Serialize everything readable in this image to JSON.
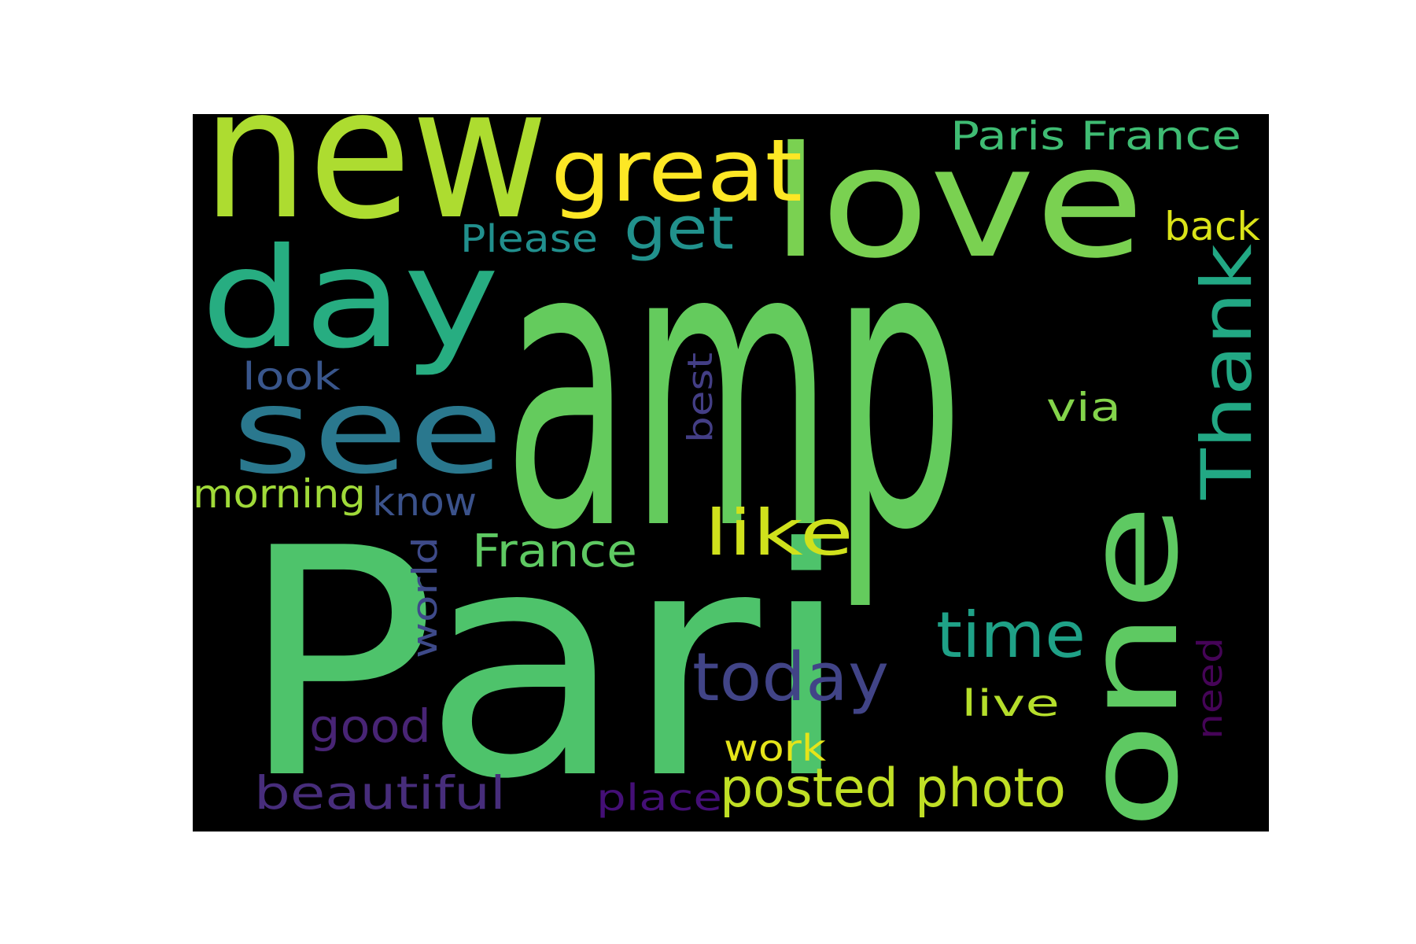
{
  "word_cloud": {
    "background_color": "#000000",
    "words": [
      {
        "text": "amp",
        "color": "#64cb5d"
      },
      {
        "text": "Pari",
        "color": "#4ec36b"
      },
      {
        "text": "new",
        "color": "#addc30"
      },
      {
        "text": "love",
        "color": "#7ad151"
      },
      {
        "text": "day",
        "color": "#27ad81"
      },
      {
        "text": "see",
        "color": "#2a788e"
      },
      {
        "text": "great",
        "color": "#fde725"
      },
      {
        "text": "one",
        "color": "#5ec962"
      },
      {
        "text": "Thank",
        "color": "#22a884"
      },
      {
        "text": "get",
        "color": "#21918c"
      },
      {
        "text": "Paris France",
        "color": "#3fbc73"
      },
      {
        "text": "Please",
        "color": "#218f8d"
      },
      {
        "text": "back",
        "color": "#dae319"
      },
      {
        "text": "today",
        "color": "#414487"
      },
      {
        "text": "time",
        "color": "#1fa187"
      },
      {
        "text": "like",
        "color": "#d0e11c"
      },
      {
        "text": "France",
        "color": "#5ec962"
      },
      {
        "text": "posted photo",
        "color": "#c0df25"
      },
      {
        "text": "morning",
        "color": "#a0da39"
      },
      {
        "text": "know",
        "color": "#3b528b"
      },
      {
        "text": "look",
        "color": "#39568c"
      },
      {
        "text": "via",
        "color": "#84d44b"
      },
      {
        "text": "best",
        "color": "#433e85"
      },
      {
        "text": "world",
        "color": "#3e4a89"
      },
      {
        "text": "good",
        "color": "#482475"
      },
      {
        "text": "beautiful",
        "color": "#472d7b"
      },
      {
        "text": "place",
        "color": "#440f76"
      },
      {
        "text": "work",
        "color": "#e5e419"
      },
      {
        "text": "live",
        "color": "#b5de2b"
      },
      {
        "text": "need",
        "color": "#450457"
      }
    ]
  }
}
